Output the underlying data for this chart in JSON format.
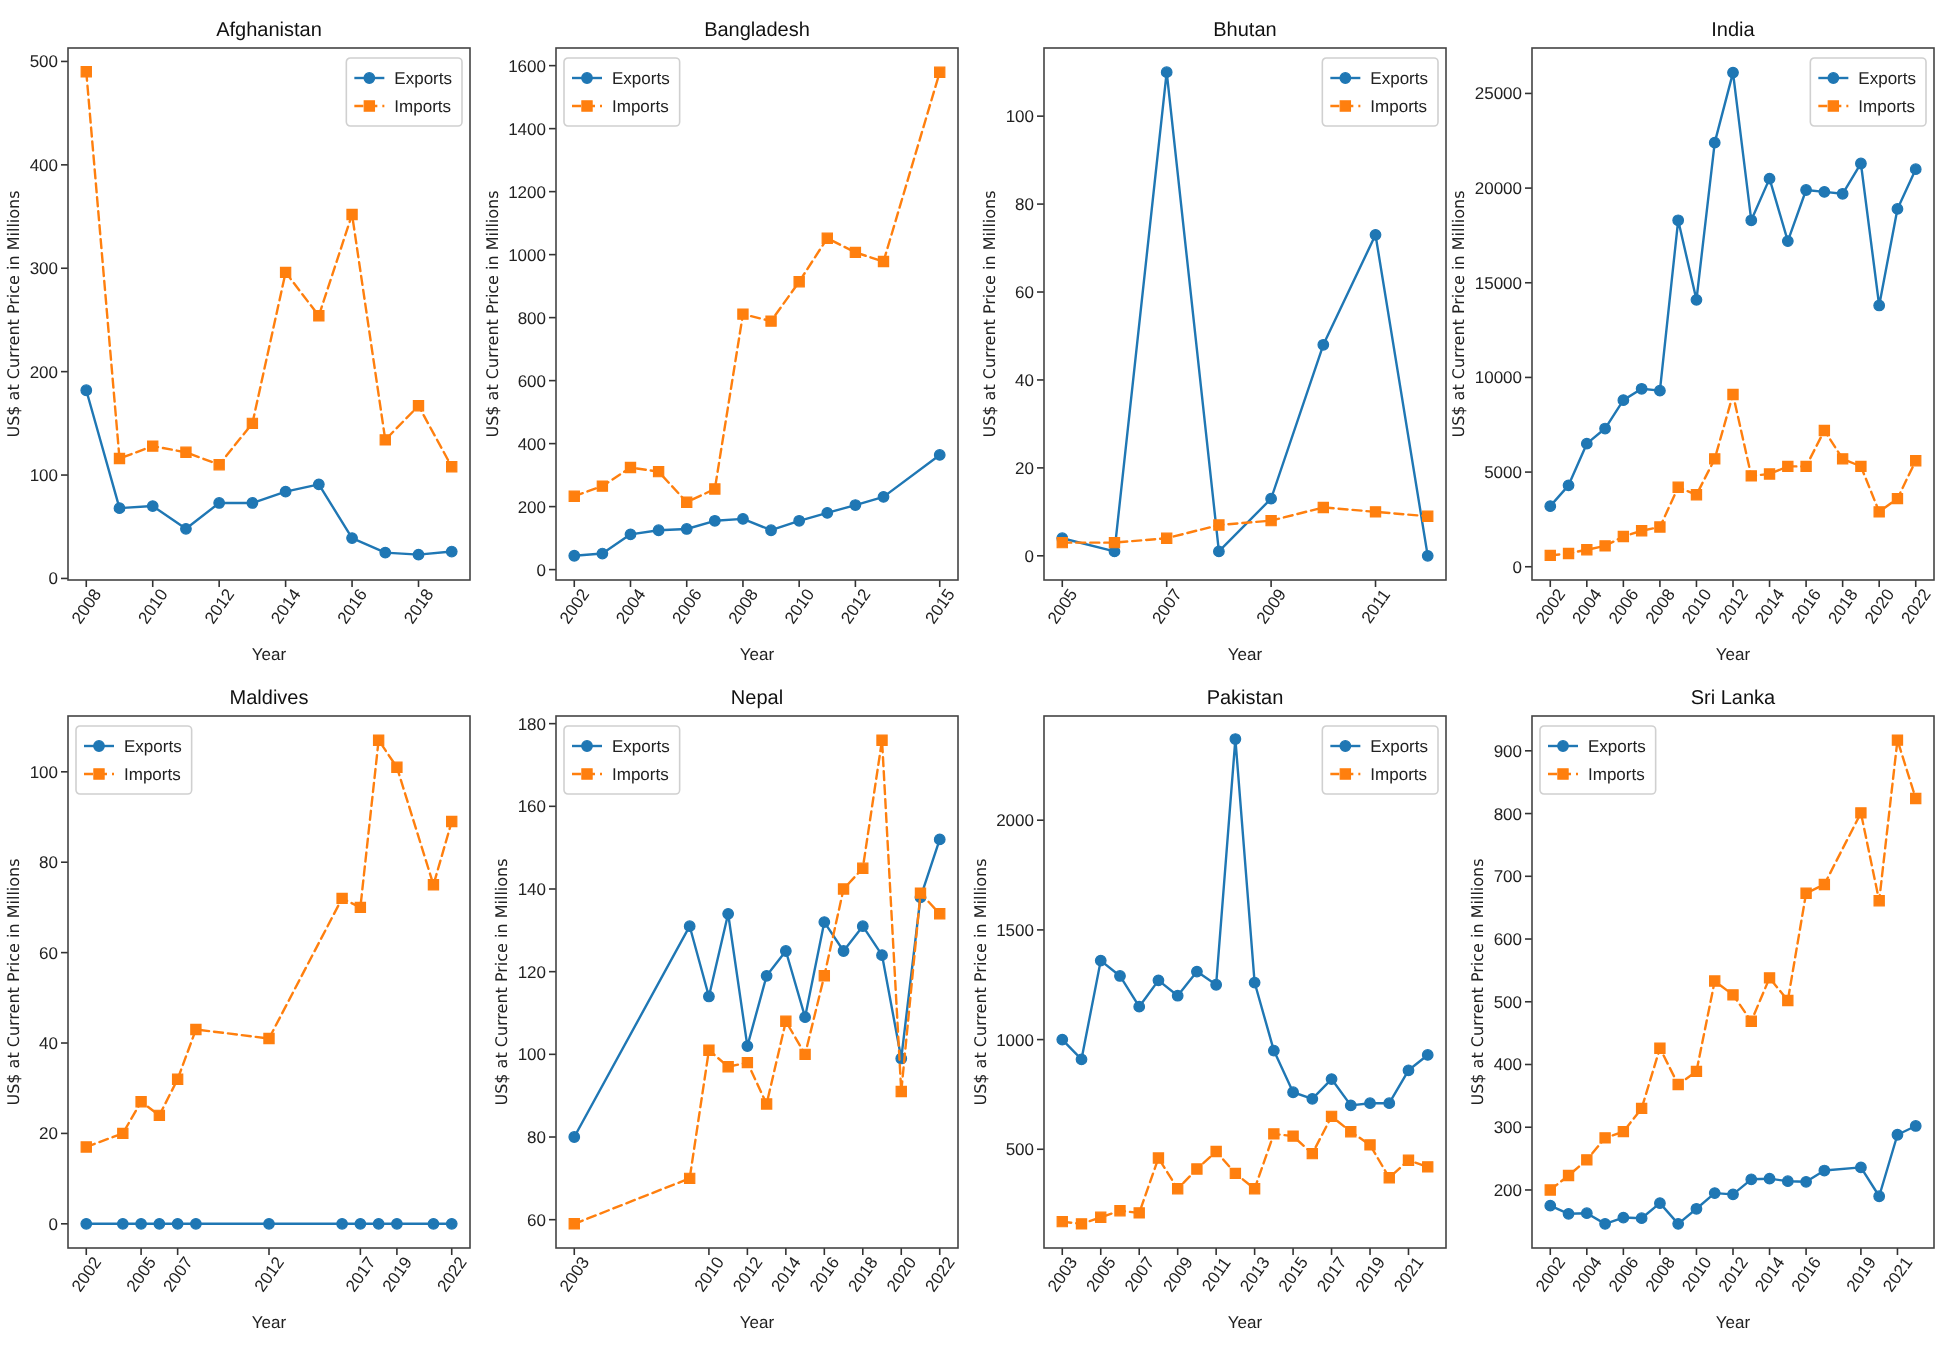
{
  "chart_data": [
    {
      "type": "line",
      "title": "Afghanistan",
      "xlabel": "Year",
      "ylabel": "US$ at Current Price in Millions",
      "legend": "top right",
      "x": [
        2008,
        2009,
        2010,
        2011,
        2012,
        2013,
        2014,
        2015,
        2016,
        2017,
        2018,
        2019
      ],
      "xlim": [
        2007.45,
        2019.55
      ],
      "xticks": [
        2008,
        2010,
        2012,
        2014,
        2016,
        2018
      ],
      "ylim": [
        -1.5,
        513
      ],
      "yticks": [
        0,
        100,
        200,
        300,
        400,
        500
      ],
      "series": [
        {
          "name": "Exports",
          "color": "#1f77b4",
          "marker": "circle",
          "line_style": "solid",
          "values": [
            182,
            68,
            70,
            48,
            73,
            73,
            84,
            91,
            39,
            25,
            23,
            26
          ]
        },
        {
          "name": "Imports",
          "color": "#ff7f0e",
          "marker": "square",
          "line_style": "dashed",
          "values": [
            490,
            116,
            128,
            122,
            110,
            150,
            296,
            254,
            352,
            134,
            167,
            108
          ]
        }
      ]
    },
    {
      "type": "line",
      "title": "Bangladesh",
      "xlabel": "Year",
      "ylabel": "US$ at Current Price in Millions",
      "legend": "top left",
      "x": [
        2002,
        2003,
        2004,
        2005,
        2006,
        2007,
        2008,
        2009,
        2010,
        2011,
        2012,
        2013,
        2015
      ],
      "xlim": [
        2001.35,
        2015.65
      ],
      "xticks": [
        2002,
        2004,
        2006,
        2008,
        2010,
        2012,
        2015
      ],
      "ylim": [
        -33,
        1656
      ],
      "yticks": [
        0,
        200,
        400,
        600,
        800,
        1000,
        1200,
        1400,
        1600
      ],
      "series": [
        {
          "name": "Exports",
          "color": "#1f77b4",
          "marker": "circle",
          "line_style": "solid",
          "values": [
            44,
            51,
            112,
            125,
            129,
            155,
            161,
            125,
            155,
            180,
            205,
            231,
            364
          ]
        },
        {
          "name": "Imports",
          "color": "#ff7f0e",
          "marker": "square",
          "line_style": "dashed",
          "values": [
            233,
            265,
            324,
            311,
            214,
            256,
            811,
            789,
            914,
            1052,
            1007,
            978,
            1579
          ]
        }
      ]
    },
    {
      "type": "line",
      "title": "Bhutan",
      "xlabel": "Year",
      "ylabel": "US$ at Current Price in Millions",
      "legend": "top right",
      "x": [
        2005,
        2006,
        2007,
        2008,
        2009,
        2010,
        2011,
        2012
      ],
      "xlim": [
        2004.65,
        2012.35
      ],
      "xticks": [
        2005,
        2007,
        2009,
        2011
      ],
      "ylim": [
        -5.5,
        115.5
      ],
      "yticks": [
        0,
        20,
        40,
        60,
        80,
        100
      ],
      "series": [
        {
          "name": "Exports",
          "color": "#1f77b4",
          "marker": "circle",
          "line_style": "solid",
          "values": [
            4,
            1,
            110,
            1,
            13,
            48,
            73,
            0
          ]
        },
        {
          "name": "Imports",
          "color": "#ff7f0e",
          "marker": "square",
          "line_style": "dashed",
          "values": [
            3,
            3,
            4,
            7,
            8,
            11,
            10,
            9
          ]
        }
      ]
    },
    {
      "type": "line",
      "title": "India",
      "xlabel": "Year",
      "ylabel": "US$ at Current Price in Millions",
      "legend": "top right",
      "x": [
        2002,
        2003,
        2004,
        2005,
        2006,
        2007,
        2008,
        2009,
        2010,
        2011,
        2012,
        2013,
        2014,
        2015,
        2016,
        2017,
        2018,
        2019,
        2020,
        2021,
        2022
      ],
      "xlim": [
        2001,
        2023
      ],
      "xticks": [
        2002,
        2004,
        2006,
        2008,
        2010,
        2012,
        2014,
        2016,
        2018,
        2020,
        2022
      ],
      "ylim": [
        -700,
        27400
      ],
      "yticks": [
        0,
        5000,
        10000,
        15000,
        20000,
        25000
      ],
      "series": [
        {
          "name": "Exports",
          "color": "#1f77b4",
          "marker": "circle",
          "line_style": "solid",
          "values": [
            3200,
            4300,
            6500,
            7300,
            8800,
            9400,
            9300,
            18300,
            14100,
            22400,
            26100,
            18300,
            20500,
            17200,
            19900,
            19800,
            19700,
            21300,
            13800,
            18900,
            21000
          ]
        },
        {
          "name": "Imports",
          "color": "#ff7f0e",
          "marker": "square",
          "line_style": "dashed",
          "values": [
            600,
            700,
            900,
            1100,
            1600,
            1900,
            2100,
            4200,
            3800,
            5700,
            9100,
            4800,
            4900,
            5300,
            5300,
            7200,
            5700,
            5300,
            2900,
            3600,
            5600
          ]
        }
      ]
    },
    {
      "type": "line",
      "title": "Maldives",
      "xlabel": "Year",
      "ylabel": "US$ at Current Price in Millions",
      "legend": "top left",
      "x": [
        2002,
        2004,
        2005,
        2006,
        2007,
        2008,
        2012,
        2016,
        2017,
        2018,
        2019,
        2021,
        2022
      ],
      "xlim": [
        2001,
        2023
      ],
      "xticks": [
        2002,
        2005,
        2007,
        2012,
        2017,
        2019,
        2022
      ],
      "ylim": [
        -5.35,
        112.35
      ],
      "yticks": [
        0,
        20,
        40,
        60,
        80,
        100
      ],
      "series": [
        {
          "name": "Exports",
          "color": "#1f77b4",
          "marker": "circle",
          "line_style": "solid",
          "values": [
            0,
            0,
            0,
            0,
            0,
            0,
            0,
            0,
            0,
            0,
            0,
            0,
            0
          ]
        },
        {
          "name": "Imports",
          "color": "#ff7f0e",
          "marker": "square",
          "line_style": "dashed",
          "values": [
            17,
            20,
            27,
            24,
            32,
            43,
            41,
            72,
            70,
            107,
            101,
            75,
            89
          ]
        }
      ]
    },
    {
      "type": "line",
      "title": "Nepal",
      "xlabel": "Year",
      "ylabel": "US$ at Current Price in Millions",
      "legend": "top left",
      "x": [
        2003,
        2009,
        2010,
        2011,
        2012,
        2013,
        2014,
        2015,
        2016,
        2017,
        2018,
        2019,
        2020,
        2021,
        2022
      ],
      "xlim": [
        2002.05,
        2022.95
      ],
      "xticks": [
        2003,
        2010,
        2012,
        2014,
        2016,
        2018,
        2020,
        2022
      ],
      "ylim": [
        53.15,
        181.85
      ],
      "yticks": [
        60,
        80,
        100,
        120,
        140,
        160,
        180
      ],
      "series": [
        {
          "name": "Exports",
          "color": "#1f77b4",
          "marker": "circle",
          "line_style": "solid",
          "values": [
            80,
            131,
            114,
            134,
            102,
            119,
            125,
            109,
            132,
            125,
            131,
            124,
            99,
            138,
            152
          ]
        },
        {
          "name": "Imports",
          "color": "#ff7f0e",
          "marker": "square",
          "line_style": "dashed",
          "values": [
            59,
            70,
            101,
            97,
            98,
            88,
            108,
            100,
            119,
            140,
            145,
            176,
            91,
            139,
            134
          ]
        }
      ]
    },
    {
      "type": "line",
      "title": "Pakistan",
      "xlabel": "Year",
      "ylabel": "US$ at Current Price in Millions",
      "legend": "top right",
      "x": [
        2003,
        2004,
        2005,
        2006,
        2007,
        2008,
        2009,
        2010,
        2011,
        2012,
        2013,
        2014,
        2015,
        2016,
        2017,
        2018,
        2019,
        2020,
        2021,
        2022
      ],
      "xlim": [
        2002.05,
        2022.95
      ],
      "xticks": [
        2003,
        2005,
        2007,
        2009,
        2011,
        2013,
        2015,
        2017,
        2019,
        2021
      ],
      "ylim": [
        50,
        2475
      ],
      "yticks": [
        500,
        1000,
        1500,
        2000
      ],
      "series": [
        {
          "name": "Exports",
          "color": "#1f77b4",
          "marker": "circle",
          "line_style": "solid",
          "values": [
            1000,
            910,
            1360,
            1290,
            1150,
            1270,
            1200,
            1310,
            1250,
            2370,
            1260,
            950,
            760,
            730,
            820,
            700,
            710,
            710,
            860,
            930
          ]
        },
        {
          "name": "Imports",
          "color": "#ff7f0e",
          "marker": "square",
          "line_style": "dashed",
          "values": [
            170,
            160,
            190,
            220,
            210,
            460,
            320,
            410,
            490,
            390,
            320,
            570,
            560,
            480,
            650,
            580,
            520,
            370,
            450,
            420
          ]
        }
      ]
    },
    {
      "type": "line",
      "title": "Sri Lanka",
      "xlabel": "Year",
      "ylabel": "US$ at Current Price in Millions",
      "legend": "top left",
      "x": [
        2002,
        2003,
        2004,
        2005,
        2006,
        2007,
        2008,
        2009,
        2010,
        2011,
        2012,
        2013,
        2014,
        2015,
        2016,
        2017,
        2019,
        2020,
        2021,
        2022
      ],
      "xlim": [
        2001,
        2023
      ],
      "xticks": [
        2002,
        2004,
        2006,
        2008,
        2010,
        2012,
        2014,
        2016,
        2019,
        2021
      ],
      "ylim": [
        107.5,
        955.5
      ],
      "yticks": [
        200,
        300,
        400,
        500,
        600,
        700,
        800,
        900
      ],
      "series": [
        {
          "name": "Exports",
          "color": "#1f77b4",
          "marker": "circle",
          "line_style": "solid",
          "values": [
            175,
            162,
            163,
            146,
            156,
            155,
            179,
            146,
            170,
            195,
            193,
            217,
            218,
            214,
            213,
            231,
            236,
            190,
            288,
            302
          ]
        },
        {
          "name": "Imports",
          "color": "#ff7f0e",
          "marker": "square",
          "line_style": "dashed",
          "values": [
            200,
            223,
            248,
            283,
            293,
            330,
            426,
            368,
            389,
            533,
            511,
            469,
            538,
            502,
            673,
            687,
            801,
            661,
            917,
            824
          ]
        }
      ]
    }
  ]
}
